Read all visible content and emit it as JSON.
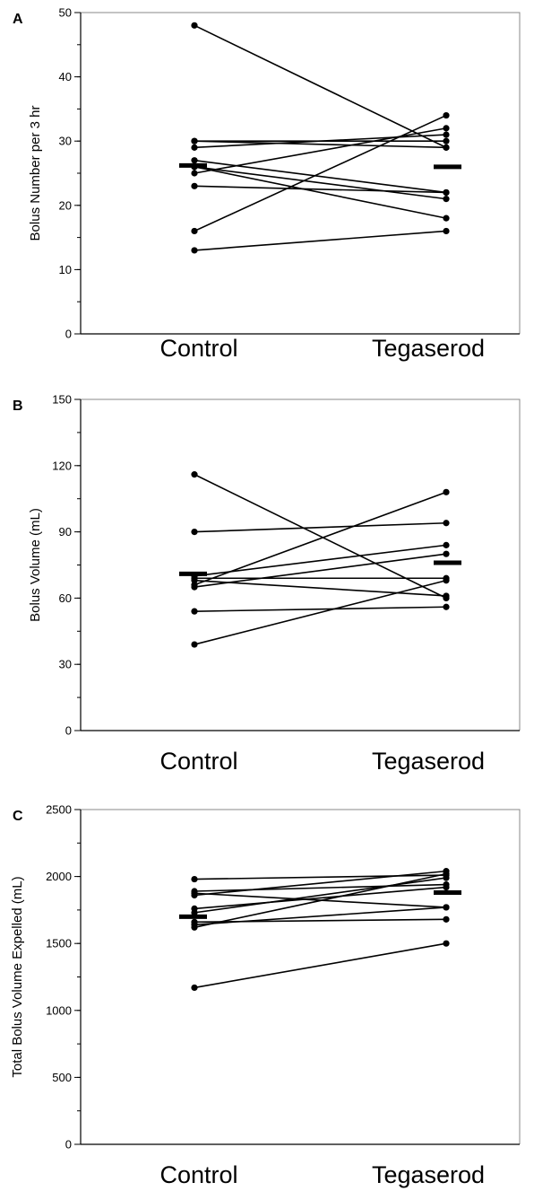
{
  "chart_data": [
    {
      "type": "line",
      "panel_label": "A",
      "ylabel": "Bolus Number per 3 hr",
      "categories": [
        "Control",
        "Tegaserod"
      ],
      "ylim": [
        0,
        50
      ],
      "yticks": [
        0,
        10,
        20,
        30,
        40,
        50
      ],
      "minor_step": 5,
      "pairs": [
        [
          48,
          29
        ],
        [
          30,
          30
        ],
        [
          29,
          31
        ],
        [
          27,
          22
        ],
        [
          26,
          21
        ],
        [
          25,
          32
        ],
        [
          23,
          22
        ],
        [
          16,
          34
        ],
        [
          13,
          16
        ],
        [
          26,
          18
        ],
        [
          30,
          29
        ]
      ],
      "means": [
        26.2,
        26
      ]
    },
    {
      "type": "line",
      "panel_label": "B",
      "ylabel": "Bolus Volume (mL)",
      "categories": [
        "Control",
        "Tegaserod"
      ],
      "ylim": [
        0,
        150
      ],
      "yticks": [
        0,
        30,
        60,
        90,
        120,
        150
      ],
      "minor_step": 15,
      "pairs": [
        [
          116,
          60
        ],
        [
          90,
          94
        ],
        [
          70,
          84
        ],
        [
          68,
          61
        ],
        [
          66,
          108
        ],
        [
          65,
          80
        ],
        [
          69,
          69
        ],
        [
          54,
          56
        ],
        [
          39,
          68
        ]
      ],
      "means": [
        71,
        76
      ]
    },
    {
      "type": "line",
      "panel_label": "C",
      "ylabel": "Total Bolus Volume Expelled (mL)",
      "categories": [
        "Control",
        "Tegaserod"
      ],
      "ylim": [
        0,
        2500
      ],
      "yticks": [
        0,
        500,
        1000,
        1500,
        2000,
        2500
      ],
      "minor_step": 250,
      "pairs": [
        [
          1980,
          2010
        ],
        [
          1890,
          1940
        ],
        [
          1875,
          1770
        ],
        [
          1860,
          2040
        ],
        [
          1760,
          1920
        ],
        [
          1730,
          1990
        ],
        [
          1660,
          1680
        ],
        [
          1640,
          1770
        ],
        [
          1620,
          2020
        ],
        [
          1170,
          1500
        ]
      ],
      "means": [
        1700,
        1880
      ]
    }
  ]
}
